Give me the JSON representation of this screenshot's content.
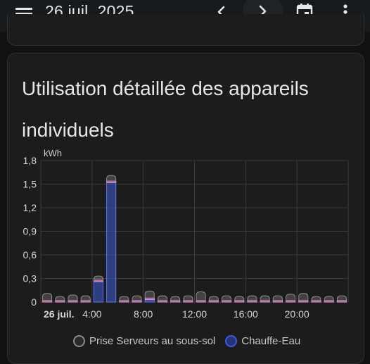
{
  "topbar": {
    "date": "26 juil. 2025"
  },
  "icons": {
    "menu": "menu-icon",
    "prev": "chevron-left-icon",
    "next": "chevron-right-icon",
    "calendar": "calendar-icon",
    "more": "more-vert-icon"
  },
  "card": {
    "title": "Utilisation détaillée des appareils individuels"
  },
  "colors": {
    "background": "#111111",
    "card": "#1c1c1c",
    "grey_series": "#8a8a8a",
    "blue_series": "#3f5bd1",
    "pink_series": "#e07ad6"
  },
  "chart_data": {
    "type": "bar",
    "ylabel": "kWh",
    "ylim": [
      0,
      1.8
    ],
    "y_ticks": [
      "0",
      "0,3",
      "0,6",
      "0,9",
      "1,2",
      "1,5",
      "1,8"
    ],
    "y_tick_values": [
      0,
      0.3,
      0.6,
      0.9,
      1.2,
      1.5,
      1.8
    ],
    "x_ticks": [
      "26 juil.",
      "4:00",
      "8:00",
      "12:00",
      "16:00",
      "20:00"
    ],
    "x_tick_hours": [
      0,
      4,
      8,
      12,
      16,
      20
    ],
    "categories": [
      "0:00",
      "1:00",
      "2:00",
      "3:00",
      "4:00",
      "5:00",
      "6:00",
      "7:00",
      "8:00",
      "9:00",
      "10:00",
      "11:00",
      "12:00",
      "13:00",
      "14:00",
      "15:00",
      "16:00",
      "17:00",
      "18:00",
      "19:00",
      "20:00",
      "21:00",
      "22:00",
      "23:00"
    ],
    "stacked": true,
    "grid": true,
    "series": [
      {
        "name": "Chauffe-Eau",
        "color": "#3f5bd1",
        "values": [
          0,
          0,
          0,
          0,
          0.26,
          1.52,
          0,
          0,
          0.03,
          0,
          0,
          0,
          0,
          0,
          0,
          0,
          0,
          0,
          0,
          0,
          0,
          0,
          0,
          0
        ]
      },
      {
        "name": "",
        "color": "#e07ad6",
        "values": [
          0.02,
          0.02,
          0.02,
          0.02,
          0.02,
          0.02,
          0.02,
          0.02,
          0.02,
          0.02,
          0.02,
          0.02,
          0.02,
          0.02,
          0.02,
          0.02,
          0.02,
          0.02,
          0.02,
          0.02,
          0.02,
          0.02,
          0.02,
          0.02
        ]
      },
      {
        "name": "Prise Serveurs au sous-sol",
        "color": "#8a8a8a",
        "values": [
          0.09,
          0.05,
          0.07,
          0.06,
          0.05,
          0.07,
          0.05,
          0.06,
          0.09,
          0.06,
          0.05,
          0.06,
          0.11,
          0.05,
          0.06,
          0.05,
          0.06,
          0.06,
          0.06,
          0.08,
          0.09,
          0.05,
          0.05,
          0.06
        ]
      }
    ],
    "legend": [
      "Prise Serveurs au sous-sol",
      "Chauffe-Eau"
    ],
    "legend_position": "bottom"
  }
}
